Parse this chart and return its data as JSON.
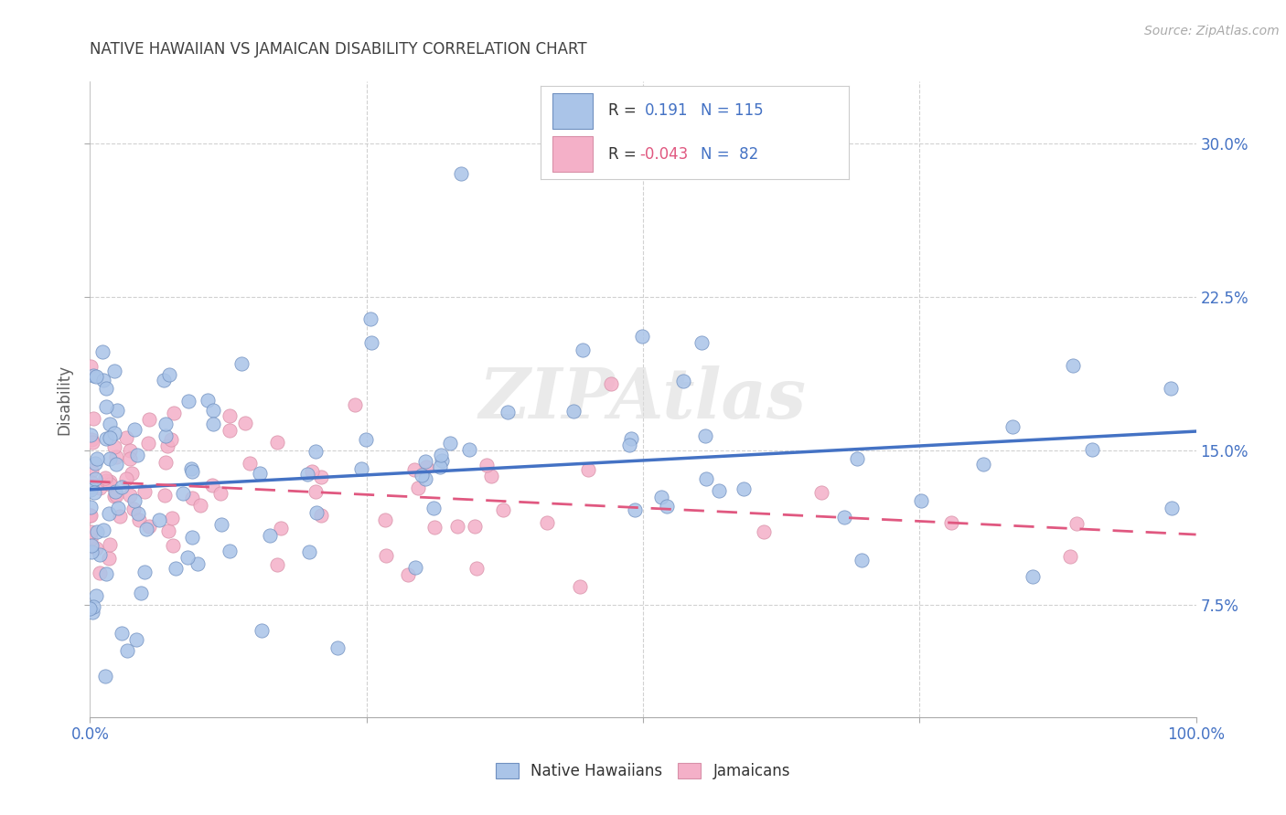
{
  "title": "NATIVE HAWAIIAN VS JAMAICAN DISABILITY CORRELATION CHART",
  "source": "Source: ZipAtlas.com",
  "ylabel": "Disability",
  "yticks": [
    0.075,
    0.15,
    0.225,
    0.3
  ],
  "ytick_labels": [
    "7.5%",
    "15.0%",
    "22.5%",
    "30.0%"
  ],
  "xlim": [
    0.0,
    1.0
  ],
  "ylim": [
    0.02,
    0.33
  ],
  "nh_R": 0.191,
  "nh_N": 115,
  "jam_R": -0.043,
  "jam_N": 82,
  "nh_color": "#aac4e8",
  "jam_color": "#f4b0c8",
  "nh_line_color": "#4472c4",
  "jam_line_color": "#e05880",
  "watermark": "ZIPAtlas",
  "background_color": "#ffffff",
  "grid_color": "#cccccc",
  "title_color": "#404040",
  "source_color": "#aaaaaa",
  "tick_color": "#4472c4",
  "ylabel_color": "#606060"
}
